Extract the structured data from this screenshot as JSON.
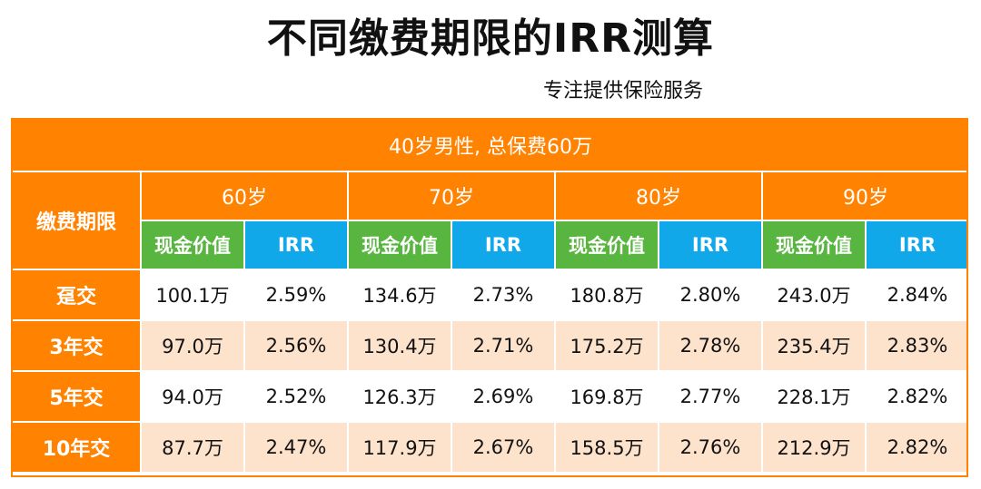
{
  "header": {
    "title": "不同缴费期限的IRR测算",
    "subtitle": "专注提供保险服务"
  },
  "table": {
    "banner": "40岁男性, 总保费60万",
    "row_header_label": "缴费期限",
    "ages": [
      "60岁",
      "70岁",
      "80岁",
      "90岁"
    ],
    "sub_headers": {
      "cash_value": "现金价值",
      "irr": "IRR"
    },
    "rows": [
      {
        "label": "趸交",
        "cells": [
          {
            "cash": "100.1万",
            "irr": "2.59%"
          },
          {
            "cash": "134.6万",
            "irr": "2.73%"
          },
          {
            "cash": "180.8万",
            "irr": "2.80%"
          },
          {
            "cash": "243.0万",
            "irr": "2.84%"
          }
        ]
      },
      {
        "label": "3年交",
        "cells": [
          {
            "cash": "97.0万",
            "irr": "2.56%"
          },
          {
            "cash": "130.4万",
            "irr": "2.71%"
          },
          {
            "cash": "175.2万",
            "irr": "2.78%"
          },
          {
            "cash": "235.4万",
            "irr": "2.83%"
          }
        ]
      },
      {
        "label": "5年交",
        "cells": [
          {
            "cash": "94.0万",
            "irr": "2.52%"
          },
          {
            "cash": "126.3万",
            "irr": "2.69%"
          },
          {
            "cash": "169.8万",
            "irr": "2.77%"
          },
          {
            "cash": "228.1万",
            "irr": "2.82%"
          }
        ]
      },
      {
        "label": "10年交",
        "cells": [
          {
            "cash": "87.7万",
            "irr": "2.47%"
          },
          {
            "cash": "117.9万",
            "irr": "2.67%"
          },
          {
            "cash": "158.5万",
            "irr": "2.76%"
          },
          {
            "cash": "212.9万",
            "irr": "2.82%"
          }
        ]
      }
    ]
  },
  "colors": {
    "orange": "#ff8200",
    "green": "#58b640",
    "blue": "#11a8ea",
    "peach": "#fde2cc"
  }
}
